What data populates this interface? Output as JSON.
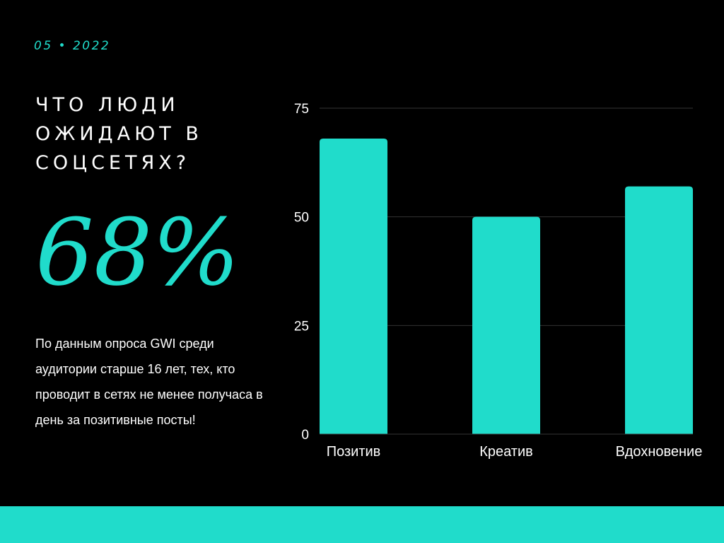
{
  "date": "05 • 2022",
  "headline": "ЧТО ЛЮДИ ОЖИДАЮТ В СОЦСЕТЯХ?",
  "big_stat": "68%",
  "description": "По данным опроса GWI среди аудитории старше 16 лет, тех, кто проводит в сетях не менее получаса в день за позитивные посты!",
  "colors": {
    "accent": "#20dccb",
    "background": "#000000",
    "text": "#ffffff",
    "grid": "#333333"
  },
  "chart_data": {
    "type": "bar",
    "categories": [
      "Позитив",
      "Креатив",
      "Вдохновение"
    ],
    "values": [
      68,
      50,
      57
    ],
    "yticks": [
      "0",
      "25",
      "50",
      "75"
    ],
    "ylim": [
      0,
      75
    ],
    "grid": true,
    "legend": "none",
    "title": "",
    "xlabel": "",
    "ylabel": ""
  }
}
